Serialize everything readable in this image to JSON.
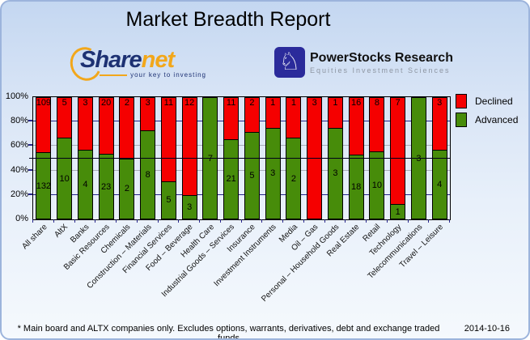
{
  "title": "Market Breadth Report",
  "logos": {
    "sharenet": {
      "name_part1": "Share",
      "name_part2": "net",
      "tagline": "your key to investing",
      "brand_navy": "#1d3173",
      "brand_orange": "#f2a71b"
    },
    "powerstocks": {
      "icon": "knight-chess-icon",
      "knight_glyph": "♘",
      "line1": "PowerStocks Research",
      "line2": "Equities Investment Sciences"
    }
  },
  "legend": [
    {
      "label": "Declined",
      "color": "#f50000"
    },
    {
      "label": "Advanced",
      "color": "#478c0a"
    }
  ],
  "chart_data": {
    "type": "bar",
    "stacked": true,
    "normalized_to_percent": true,
    "title": "Market Breadth Report",
    "ylim": [
      0,
      100
    ],
    "yticks": [
      "0%",
      "20%",
      "40%",
      "60%",
      "80%",
      "100%"
    ],
    "reference_line_pct": 50,
    "legend_position": "top-right",
    "categories": [
      "All share",
      "AltX",
      "Banks",
      "Basic Resources",
      "Chemicals",
      "Construction – Materials",
      "Financial Services",
      "Food – Beverage",
      "Health Care",
      "Industrial Goods – Services",
      "Insurance",
      "Investment Instruments",
      "Media",
      "Oil – Gas",
      "Personal – Household Goods",
      "Real Estate",
      "Retail",
      "Technology",
      "Telecommunications",
      "Travel – Leisure"
    ],
    "series": [
      {
        "name": "Declined",
        "color": "#f50000",
        "values": [
          109,
          5,
          3,
          20,
          2,
          3,
          11,
          12,
          0,
          11,
          2,
          1,
          1,
          3,
          1,
          16,
          8,
          7,
          0,
          3
        ]
      },
      {
        "name": "Advanced",
        "color": "#478c0a",
        "values": [
          132,
          10,
          4,
          23,
          2,
          8,
          5,
          3,
          7,
          21,
          5,
          3,
          2,
          0,
          3,
          18,
          10,
          1,
          3,
          4
        ]
      }
    ]
  },
  "footer": {
    "note": "* Main board and ALTX companies only. Excludes options, warrants, derivatives, debt and exchange traded funds",
    "date": "2014-10-16"
  }
}
